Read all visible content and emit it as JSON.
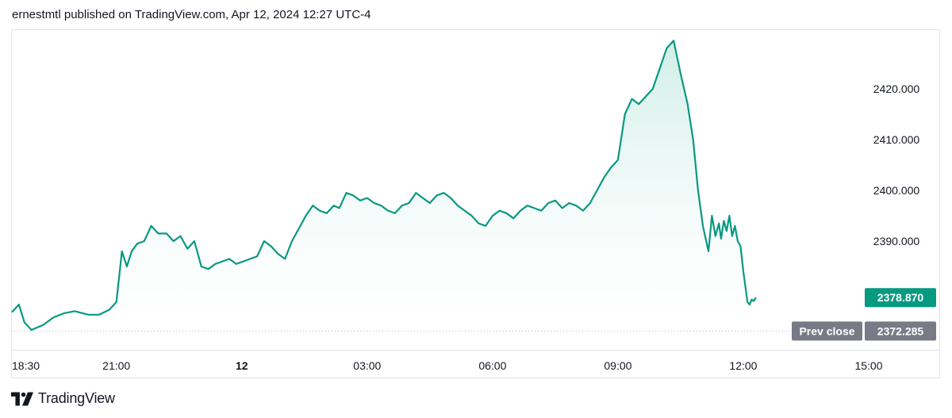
{
  "header": {
    "text": "ernestmtl published on TradingView.com, Apr 12, 2024 12:27 UTC-4"
  },
  "footer": {
    "brand": "TradingView"
  },
  "colors": {
    "line": "#089981",
    "fill_top": "#c8ebe3",
    "fill_bottom": "#ffffff",
    "prev_close_tag": "#787b86",
    "last_price_tag": "#089981"
  },
  "chart_data": {
    "type": "area",
    "ylim": [
      2366,
      2430
    ],
    "y_ticks": [
      "2390.000",
      "2400.000",
      "2410.000",
      "2420.000"
    ],
    "x_ticks": [
      {
        "label": "18:30",
        "t": 0,
        "bold": false
      },
      {
        "label": "21:00",
        "t": 150,
        "bold": false
      },
      {
        "label": "12",
        "t": 330,
        "bold": true
      },
      {
        "label": "03:00",
        "t": 510,
        "bold": false
      },
      {
        "label": "06:00",
        "t": 690,
        "bold": false
      },
      {
        "label": "09:00",
        "t": 870,
        "bold": false
      },
      {
        "label": "12:00",
        "t": 1050,
        "bold": false
      },
      {
        "label": "15:00",
        "t": 1230,
        "bold": false
      }
    ],
    "x_unit": "minutes since 18:30 (Apr 11)",
    "prev_close": {
      "label": "Prev close",
      "value": 2372.285,
      "value_text": "2372.285"
    },
    "last_price": {
      "value": 2378.87,
      "value_text": "2378.870"
    },
    "series": [
      {
        "x": [
          0,
          10,
          18,
          28,
          45,
          60,
          75,
          90,
          110,
          125,
          140,
          150,
          158,
          165,
          172,
          180,
          190,
          200,
          210,
          222,
          232,
          242,
          252,
          262,
          272,
          282,
          292,
          302,
          312,
          322,
          332,
          342,
          352,
          362,
          372,
          382,
          392,
          402,
          412,
          422,
          432,
          442,
          452,
          462,
          470,
          480,
          490,
          500,
          510,
          520,
          530,
          540,
          550,
          560,
          570,
          580,
          590,
          600,
          610,
          620,
          630,
          640,
          650,
          660,
          670,
          680,
          690,
          700,
          710,
          720,
          730,
          740,
          750,
          760,
          770,
          780,
          790,
          800,
          810,
          820,
          830,
          840,
          850,
          860,
          870,
          880,
          890,
          900,
          910,
          920,
          930,
          940,
          950,
          960,
          970,
          978,
          985,
          992,
          1000,
          1005,
          1010,
          1015,
          1018,
          1022,
          1026,
          1030,
          1034,
          1038,
          1042,
          1046,
          1050,
          1053,
          1056,
          1059,
          1062,
          1065,
          1068
        ],
        "y": [
          2376.0,
          2377.5,
          2374.0,
          2372.5,
          2373.5,
          2375.0,
          2375.8,
          2376.2,
          2375.5,
          2375.5,
          2376.5,
          2378.0,
          2388.0,
          2385.0,
          2388.0,
          2389.5,
          2390.0,
          2393.0,
          2391.5,
          2391.5,
          2390.0,
          2391.0,
          2388.5,
          2390.0,
          2385.0,
          2384.5,
          2385.5,
          2386.0,
          2386.5,
          2385.5,
          2386.0,
          2386.5,
          2387.0,
          2390.0,
          2389.0,
          2387.5,
          2386.5,
          2390.0,
          2392.5,
          2395.0,
          2397.0,
          2396.0,
          2395.5,
          2397.0,
          2396.5,
          2399.5,
          2399.0,
          2398.0,
          2398.5,
          2397.5,
          2397.0,
          2396.0,
          2395.5,
          2397.0,
          2397.5,
          2399.5,
          2398.5,
          2397.5,
          2399.0,
          2399.5,
          2398.5,
          2397.0,
          2396.0,
          2395.0,
          2393.5,
          2393.0,
          2395.0,
          2396.0,
          2395.5,
          2394.5,
          2396.0,
          2397.0,
          2396.5,
          2396.0,
          2397.5,
          2398.0,
          2396.5,
          2397.5,
          2397.0,
          2396.0,
          2397.5,
          2400.0,
          2402.5,
          2404.5,
          2406.0,
          2415.0,
          2418.0,
          2417.0,
          2418.5,
          2420.0,
          2424.0,
          2428.0,
          2429.5,
          2423.0,
          2417.0,
          2410.0,
          2400.0,
          2393.0,
          2388.0,
          2395.0,
          2391.0,
          2393.5,
          2390.5,
          2394.0,
          2392.0,
          2395.0,
          2391.0,
          2393.0,
          2390.0,
          2389.0,
          2384.0,
          2381.0,
          2378.0,
          2377.5,
          2378.5,
          2378.2,
          2378.87
        ]
      }
    ]
  }
}
